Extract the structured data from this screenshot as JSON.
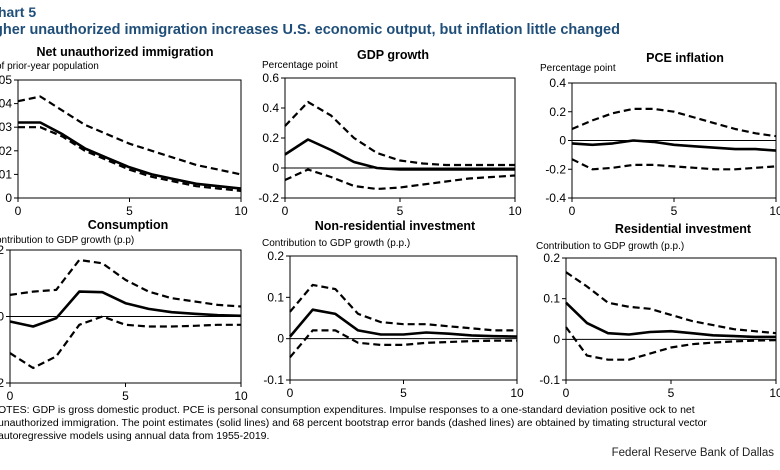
{
  "header": {
    "title": "hart 5",
    "subtitle": "gher unauthorized immigration increases U.S. economic output, but inflation little changed"
  },
  "notes": "OTES: GDP is gross domestic product. PCE is personal consumption expenditures. Impulse responses to a one-standard deviation positive ock to net unauthorized immigration. The point estimates (solid lines) and 68 percent bootstrap error bands (dashed lines) are obtained by timating structural vector autoregressive models using annual data from 1955-2019.",
  "source": "Federal Reserve Bank of Dallas",
  "chart_data": [
    {
      "type": "line",
      "title": "Net unauthorized immigration",
      "ylabel": "of prior-year population",
      "xlim": [
        0,
        10
      ],
      "ylim": [
        0,
        0.05
      ],
      "xticks": [
        "0",
        "5",
        "10"
      ],
      "yticks": [
        "0",
        "01",
        "02",
        "03",
        "04",
        "05"
      ],
      "ytick_values": [
        0,
        0.01,
        0.02,
        0.03,
        0.04,
        0.05
      ],
      "x": [
        0,
        1,
        2,
        3,
        4,
        5,
        6,
        7,
        8,
        9,
        10
      ],
      "series": [
        {
          "style": "dashed",
          "values": [
            0.041,
            0.043,
            0.037,
            0.031,
            0.027,
            0.023,
            0.02,
            0.017,
            0.014,
            0.012,
            0.01
          ]
        },
        {
          "style": "solid",
          "values": [
            0.032,
            0.032,
            0.027,
            0.021,
            0.017,
            0.013,
            0.01,
            0.008,
            0.006,
            0.005,
            0.004
          ]
        },
        {
          "style": "dashed",
          "values": [
            0.03,
            0.03,
            0.026,
            0.02,
            0.016,
            0.012,
            0.009,
            0.007,
            0.005,
            0.004,
            0.003
          ]
        }
      ]
    },
    {
      "type": "line",
      "title": "GDP growth",
      "ylabel": "Percentage point",
      "xlim": [
        0,
        10
      ],
      "ylim": [
        -0.2,
        0.6
      ],
      "xticks": [
        "0",
        "5",
        "10"
      ],
      "yticks": [
        "-0.2",
        "0",
        "0.2",
        "0.4",
        "0.6"
      ],
      "ytick_values": [
        -0.2,
        0,
        0.2,
        0.4,
        0.6
      ],
      "x": [
        0,
        1,
        2,
        3,
        4,
        5,
        6,
        7,
        8,
        9,
        10
      ],
      "series": [
        {
          "style": "dashed",
          "values": [
            0.28,
            0.44,
            0.35,
            0.2,
            0.1,
            0.05,
            0.03,
            0.02,
            0.02,
            0.02,
            0.02
          ]
        },
        {
          "style": "solid",
          "values": [
            0.09,
            0.19,
            0.12,
            0.04,
            0.0,
            -0.01,
            -0.01,
            -0.01,
            -0.01,
            -0.01,
            -0.01
          ]
        },
        {
          "style": "dashed",
          "values": [
            -0.08,
            -0.01,
            -0.06,
            -0.12,
            -0.14,
            -0.13,
            -0.11,
            -0.09,
            -0.07,
            -0.06,
            -0.05
          ]
        }
      ]
    },
    {
      "type": "line",
      "title": "PCE inflation",
      "ylabel": "Percentage point",
      "xlim": [
        0,
        10
      ],
      "ylim": [
        -0.4,
        0.4
      ],
      "xticks": [
        "0",
        "5",
        "10"
      ],
      "yticks": [
        "-0.4",
        "-0.2",
        "0",
        "0.2",
        "0.4"
      ],
      "ytick_values": [
        -0.4,
        -0.2,
        0,
        0.2,
        0.4
      ],
      "x": [
        0,
        1,
        2,
        3,
        4,
        5,
        6,
        7,
        8,
        9,
        10
      ],
      "series": [
        {
          "style": "dashed",
          "values": [
            0.08,
            0.14,
            0.19,
            0.22,
            0.22,
            0.2,
            0.16,
            0.12,
            0.08,
            0.05,
            0.03
          ]
        },
        {
          "style": "solid",
          "values": [
            -0.02,
            -0.03,
            -0.02,
            0.0,
            -0.01,
            -0.03,
            -0.04,
            -0.05,
            -0.06,
            -0.06,
            -0.07
          ]
        },
        {
          "style": "dashed",
          "values": [
            -0.13,
            -0.2,
            -0.19,
            -0.17,
            -0.17,
            -0.18,
            -0.19,
            -0.2,
            -0.2,
            -0.19,
            -0.18
          ]
        }
      ]
    },
    {
      "type": "line",
      "title": "Consumption",
      "ylabel": "ontribution to GDP growth (p.p)",
      "xlim": [
        0,
        10
      ],
      "ylim": [
        -0.2,
        0.2
      ],
      "xticks": [
        "0",
        "5",
        "10"
      ],
      "yticks": [
        "2",
        "0",
        "2"
      ],
      "ytick_values": [
        -0.2,
        0,
        0.2
      ],
      "x": [
        0,
        1,
        2,
        3,
        4,
        5,
        6,
        7,
        8,
        9,
        10
      ],
      "series": [
        {
          "style": "dashed",
          "values": [
            0.065,
            0.075,
            0.08,
            0.17,
            0.16,
            0.11,
            0.075,
            0.055,
            0.045,
            0.035,
            0.03
          ]
        },
        {
          "style": "solid",
          "values": [
            -0.015,
            -0.03,
            -0.005,
            0.075,
            0.073,
            0.04,
            0.023,
            0.013,
            0.008,
            0.004,
            0.002
          ]
        },
        {
          "style": "dashed",
          "values": [
            -0.11,
            -0.155,
            -0.12,
            -0.025,
            0.0,
            -0.025,
            -0.03,
            -0.03,
            -0.028,
            -0.025,
            -0.025
          ]
        }
      ]
    },
    {
      "type": "line",
      "title": "Non-residential investment",
      "ylabel": "Contribution to GDP growth (p.p.)",
      "xlim": [
        0,
        10
      ],
      "ylim": [
        -0.1,
        0.2
      ],
      "xticks": [
        "0",
        "5",
        "10"
      ],
      "yticks": [
        "-0.1",
        "0",
        "0.1",
        "0.2"
      ],
      "ytick_values": [
        -0.1,
        0,
        0.1,
        0.2
      ],
      "x": [
        0,
        1,
        2,
        3,
        4,
        5,
        6,
        7,
        8,
        9,
        10
      ],
      "series": [
        {
          "style": "dashed",
          "values": [
            0.065,
            0.13,
            0.12,
            0.06,
            0.04,
            0.035,
            0.035,
            0.03,
            0.025,
            0.02,
            0.02
          ]
        },
        {
          "style": "solid",
          "values": [
            0.005,
            0.07,
            0.06,
            0.02,
            0.01,
            0.01,
            0.015,
            0.012,
            0.008,
            0.006,
            0.005
          ]
        },
        {
          "style": "dashed",
          "values": [
            -0.045,
            0.02,
            0.02,
            -0.01,
            -0.015,
            -0.015,
            -0.01,
            -0.008,
            -0.006,
            -0.005,
            -0.005
          ]
        }
      ]
    },
    {
      "type": "line",
      "title": "Residential investment",
      "ylabel": "Contribution to GDP growth (p.p.)",
      "xlim": [
        0,
        10
      ],
      "ylim": [
        -0.1,
        0.2
      ],
      "xticks": [
        "0",
        "5",
        "10"
      ],
      "yticks": [
        "-0.1",
        "0",
        "0.1",
        "0.2"
      ],
      "ytick_values": [
        -0.1,
        0,
        0.1,
        0.2
      ],
      "x": [
        0,
        1,
        2,
        3,
        4,
        5,
        6,
        7,
        8,
        9,
        10
      ],
      "series": [
        {
          "style": "dashed",
          "values": [
            0.165,
            0.13,
            0.09,
            0.08,
            0.075,
            0.06,
            0.045,
            0.035,
            0.025,
            0.02,
            0.015
          ]
        },
        {
          "style": "solid",
          "values": [
            0.09,
            0.04,
            0.015,
            0.012,
            0.018,
            0.02,
            0.015,
            0.01,
            0.008,
            0.006,
            0.006
          ]
        },
        {
          "style": "dashed",
          "values": [
            0.03,
            -0.04,
            -0.05,
            -0.05,
            -0.035,
            -0.02,
            -0.012,
            -0.008,
            -0.005,
            -0.003,
            -0.002
          ]
        }
      ]
    }
  ]
}
